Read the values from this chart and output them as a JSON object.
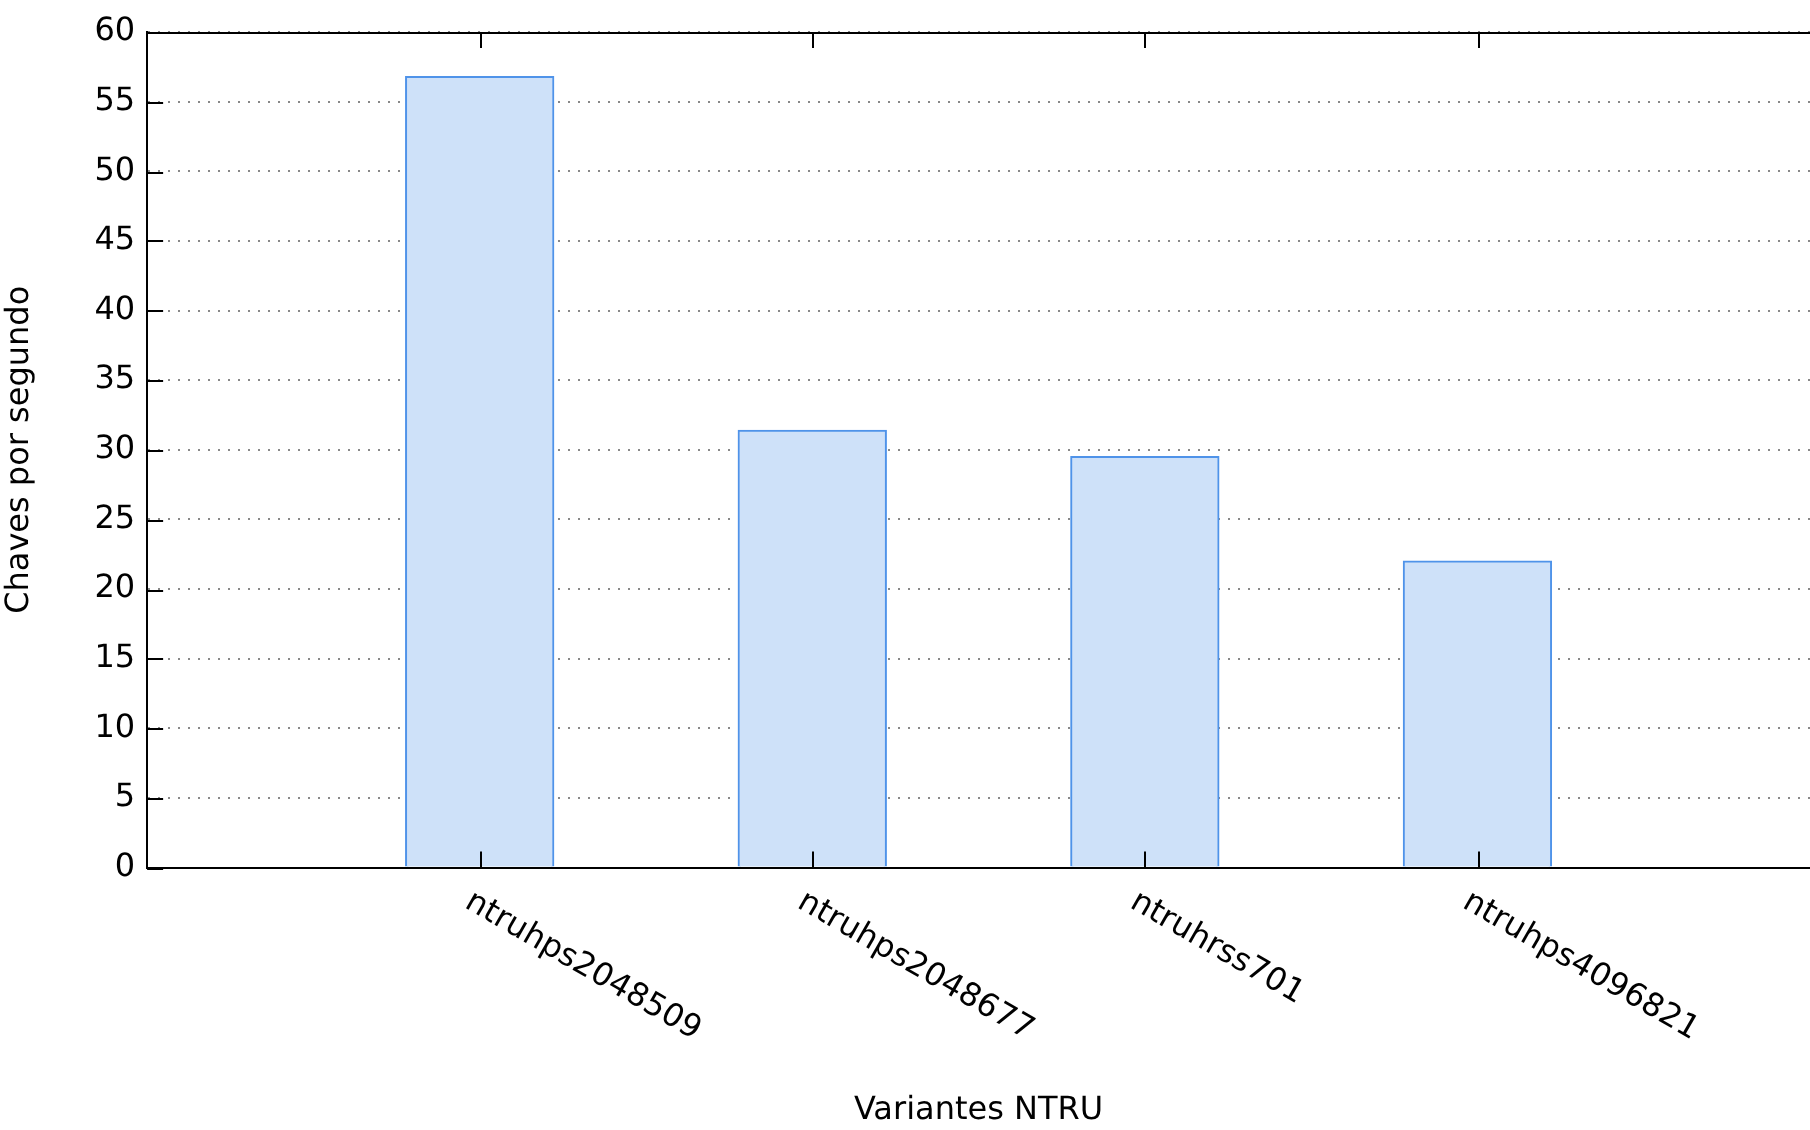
{
  "chart_data": {
    "type": "bar",
    "xlabel": "Variantes NTRU",
    "ylabel": "Chaves por segundo",
    "categories": [
      "ntruhps2048509",
      "ntruhps2048677",
      "ntruhrss701",
      "ntruhps4096821"
    ],
    "series": [
      {
        "color": "#cee1f9",
        "values": [
          56.8,
          31.4,
          29.5,
          22.0
        ]
      }
    ],
    "ylim": [
      0,
      60
    ],
    "yticks": [
      0,
      5,
      10,
      15,
      20,
      25,
      30,
      35,
      40,
      45,
      50,
      55,
      60
    ],
    "grid": "y",
    "legend": false
  }
}
